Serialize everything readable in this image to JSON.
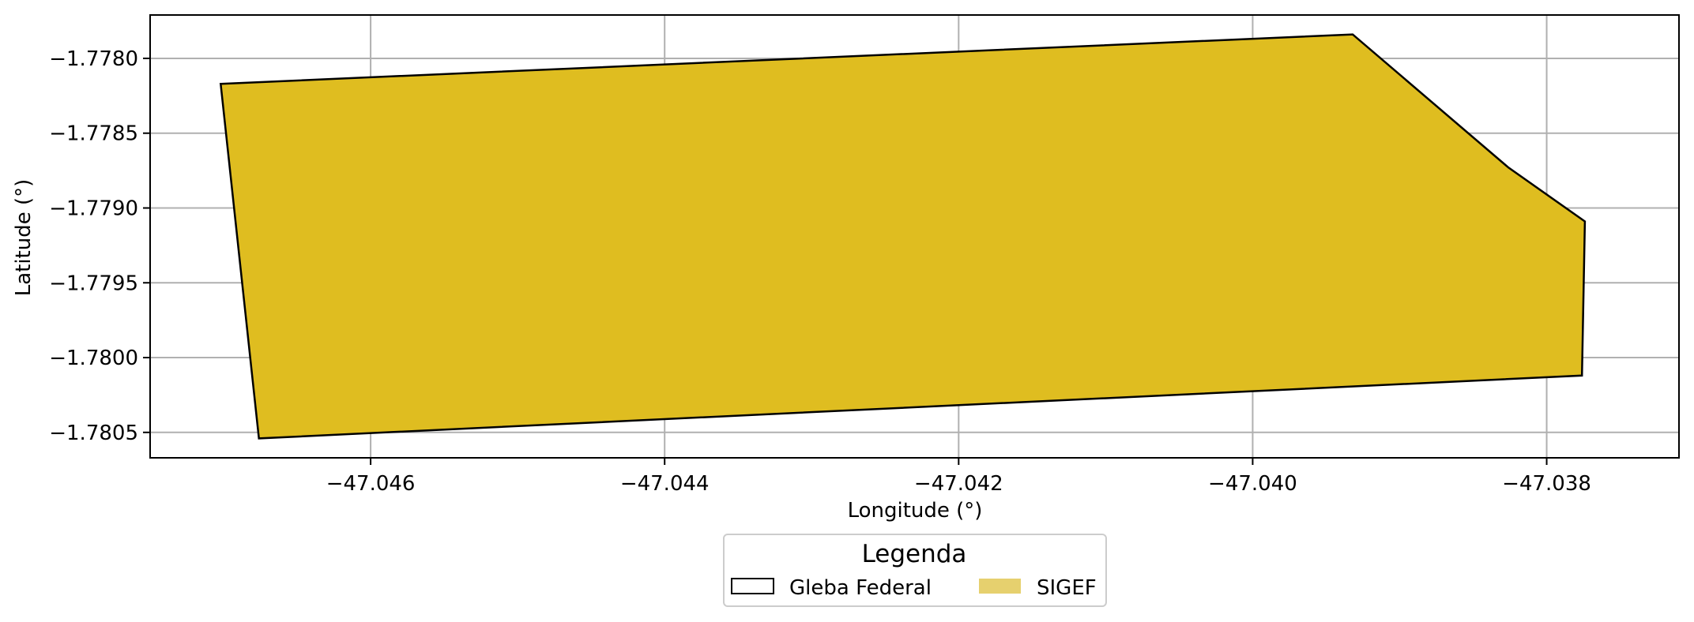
{
  "chart_data": {
    "type": "map",
    "xlabel": "Longitude (°)",
    "ylabel": "Latitude (°)",
    "xlim": [
      -47.0475,
      -47.0371
    ],
    "ylim": [
      -1.78067,
      -1.77771
    ],
    "grid": true,
    "x_ticks": [
      -47.046,
      -47.044,
      -47.042,
      -47.04,
      -47.038
    ],
    "y_ticks": [
      -1.778,
      -1.7785,
      -1.779,
      -1.7795,
      -1.78,
      -1.7805
    ],
    "x_tick_labels": [
      "−47.046",
      "−47.044",
      "−47.042",
      "−47.040",
      "−47.038"
    ],
    "y_tick_labels": [
      "−1.7780",
      "−1.7785",
      "−1.7790",
      "−1.7795",
      "−1.7800",
      "−1.7805"
    ],
    "polygon": {
      "layer": "SIGEF",
      "outline_layer": "Gleba Federal",
      "fill_color": "#dfbd20",
      "outline_color": "#000000",
      "coordinates": [
        [
          -47.04702,
          -1.77817
        ],
        [
          -47.03932,
          -1.77784
        ],
        [
          -47.03826,
          -1.77873
        ],
        [
          -47.03774,
          -1.77909
        ],
        [
          -47.03776,
          -1.78012
        ],
        [
          -47.04676,
          -1.78054
        ]
      ]
    },
    "legend": {
      "title": "Legenda",
      "placement": "bottom-center",
      "entries": [
        {
          "label": "Gleba Federal",
          "style": "outline",
          "color": "#000000"
        },
        {
          "label": "SIGEF",
          "style": "fill",
          "color": "#e6d06e"
        }
      ]
    }
  }
}
